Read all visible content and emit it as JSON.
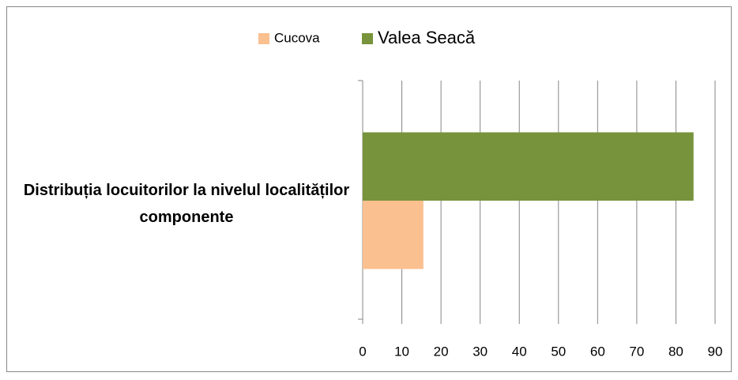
{
  "chart_data": {
    "type": "barh",
    "categories": [
      "Distribuția locuitorilor la nivelul localităților componente"
    ],
    "series": [
      {
        "name": "Cucova",
        "color": "#fac090",
        "values": [
          15.5
        ]
      },
      {
        "name": "Valea Seacă",
        "color": "#77933c",
        "values": [
          84.5
        ]
      }
    ],
    "xlim": [
      0,
      90
    ],
    "xticks": [
      0,
      10,
      20,
      30,
      40,
      50,
      60,
      70,
      80,
      90
    ],
    "grid": true,
    "legend": "top"
  }
}
